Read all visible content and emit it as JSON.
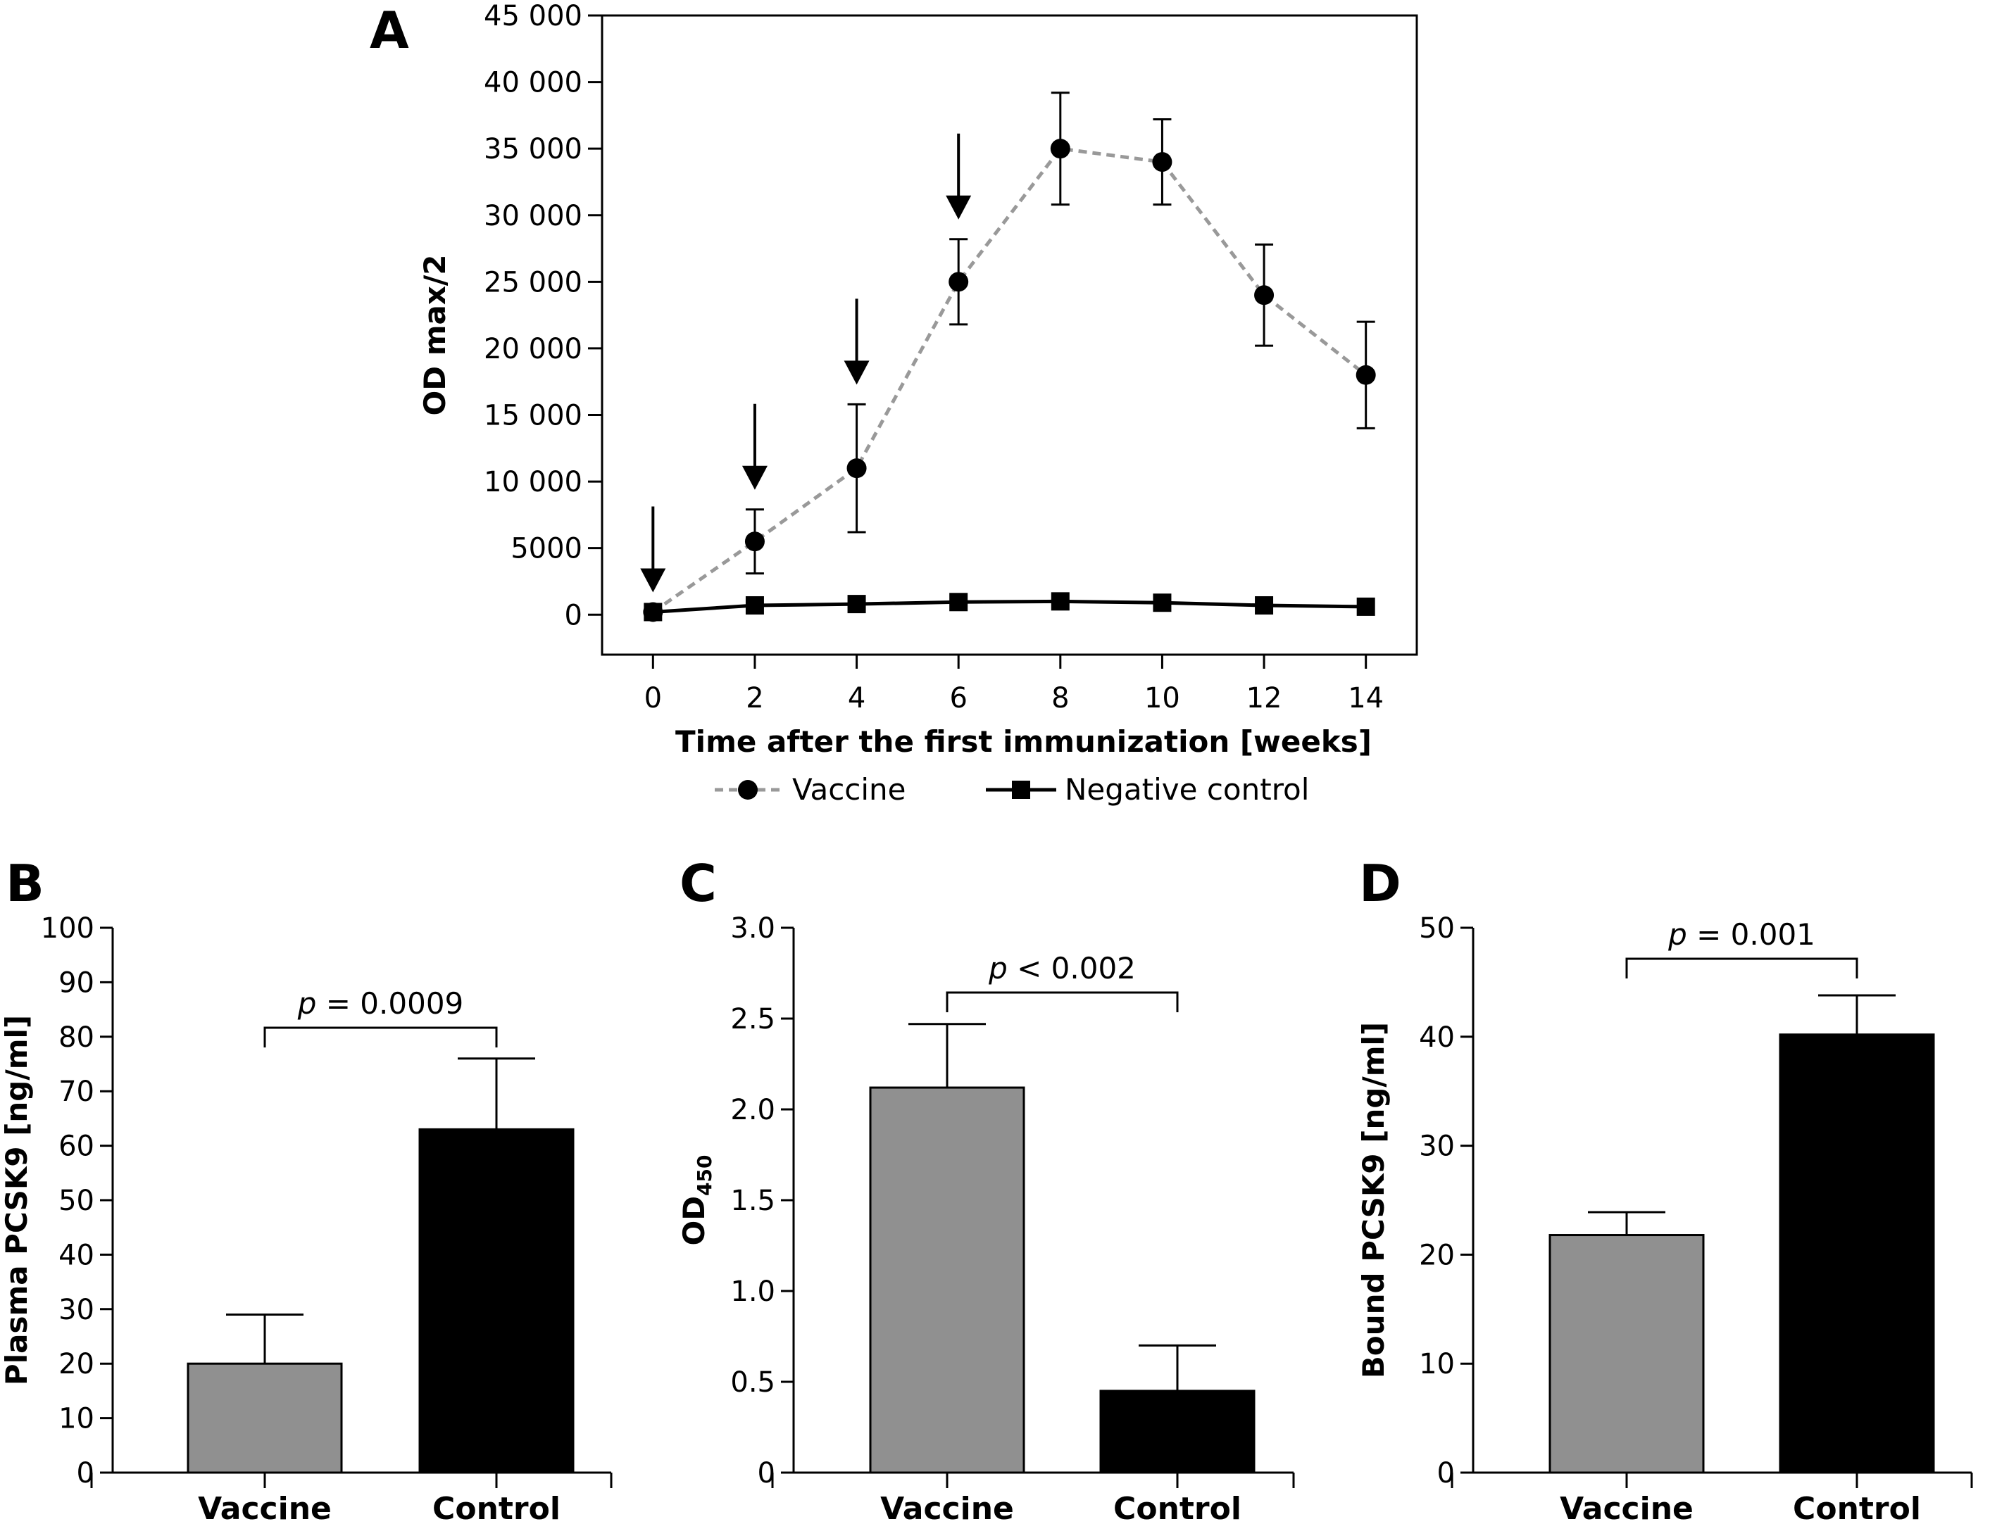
{
  "chart_data": [
    {
      "panel": "A",
      "type": "line",
      "xlabel": "Time after the first immunization [weeks]",
      "ylabel": "OD max/2",
      "x": [
        0,
        2,
        4,
        6,
        8,
        10,
        12,
        14
      ],
      "xlim": [
        -1,
        15
      ],
      "ylim": [
        -3000,
        45000
      ],
      "xticks": [
        "0",
        "2",
        "4",
        "6",
        "8",
        "10",
        "12",
        "14"
      ],
      "yticks": [
        "0",
        "5000",
        "10 000",
        "15 000",
        "20 000",
        "25 000",
        "30 000",
        "35 000",
        "40 000",
        "45 000"
      ],
      "series": [
        {
          "name": "Vaccine",
          "values": [
            200,
            5500,
            11000,
            25000,
            35000,
            34000,
            24000,
            18000
          ],
          "errors": [
            0,
            2400,
            4800,
            3200,
            4200,
            3200,
            3800,
            4000
          ],
          "marker": "circle",
          "style": "dashed",
          "color": "#999999"
        },
        {
          "name": "Negative control",
          "values": [
            200,
            700,
            800,
            950,
            1000,
            900,
            700,
            600
          ],
          "errors": [
            0,
            0,
            0,
            0,
            0,
            0,
            0,
            0
          ],
          "marker": "square",
          "style": "solid",
          "color": "#000000"
        }
      ],
      "arrows_at_weeks": [
        0,
        2,
        4,
        6
      ],
      "legend": {
        "placement": "bottom"
      }
    },
    {
      "panel": "B",
      "type": "bar",
      "ylabel": "Plasma PCSK9 [ng/ml]",
      "categories": [
        "Vaccine",
        "Control"
      ],
      "values": [
        20,
        63
      ],
      "errors": [
        9,
        13
      ],
      "colors": [
        "#909090",
        "#000000"
      ],
      "ylim": [
        0,
        100
      ],
      "yticks": [
        "0",
        "10",
        "20",
        "30",
        "40",
        "50",
        "60",
        "70",
        "80",
        "90",
        "100"
      ],
      "annotation": {
        "italic": "p",
        "text": " = 0.0009"
      }
    },
    {
      "panel": "C",
      "type": "bar",
      "ylabel": "OD",
      "ylabel_sub": "450",
      "categories": [
        "Vaccine",
        "Control"
      ],
      "values": [
        2.12,
        0.45
      ],
      "errors": [
        0.35,
        0.25
      ],
      "colors": [
        "#909090",
        "#000000"
      ],
      "ylim": [
        0,
        3.0
      ],
      "yticks": [
        "0",
        "0.5",
        "1.0",
        "1.5",
        "2.0",
        "2.5",
        "3.0"
      ],
      "annotation": {
        "italic": "p",
        "text": " < 0.002"
      }
    },
    {
      "panel": "D",
      "type": "bar",
      "ylabel": "Bound PCSK9 [ng/ml]",
      "categories": [
        "Vaccine",
        "Control"
      ],
      "values": [
        21.8,
        40.2
      ],
      "errors": [
        2.1,
        3.6
      ],
      "colors": [
        "#909090",
        "#000000"
      ],
      "ylim": [
        0,
        50
      ],
      "yticks": [
        "0",
        "10",
        "20",
        "30",
        "40",
        "50"
      ],
      "annotation": {
        "italic": "p",
        "text": " = 0.001"
      }
    }
  ]
}
